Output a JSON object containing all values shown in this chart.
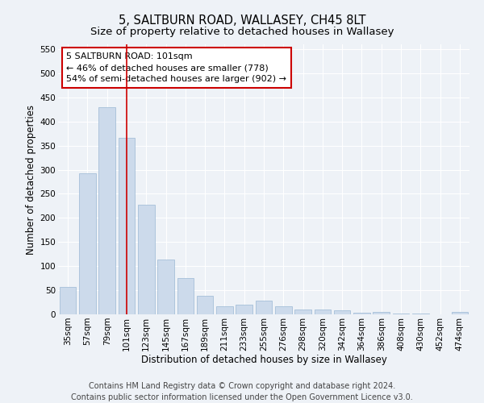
{
  "title": "5, SALTBURN ROAD, WALLASEY, CH45 8LT",
  "subtitle": "Size of property relative to detached houses in Wallasey",
  "xlabel": "Distribution of detached houses by size in Wallasey",
  "ylabel": "Number of detached properties",
  "footer_line1": "Contains HM Land Registry data © Crown copyright and database right 2024.",
  "footer_line2": "Contains public sector information licensed under the Open Government Licence v3.0.",
  "categories": [
    "35sqm",
    "57sqm",
    "79sqm",
    "101sqm",
    "123sqm",
    "145sqm",
    "167sqm",
    "189sqm",
    "211sqm",
    "233sqm",
    "255sqm",
    "276sqm",
    "298sqm",
    "320sqm",
    "342sqm",
    "364sqm",
    "386sqm",
    "408sqm",
    "430sqm",
    "452sqm",
    "474sqm"
  ],
  "values": [
    57,
    293,
    430,
    366,
    228,
    113,
    76,
    38,
    17,
    20,
    29,
    17,
    10,
    10,
    8,
    3,
    5,
    2,
    1,
    0,
    5
  ],
  "bar_color": "#ccdaeb",
  "bar_edge_color": "#9ab8d4",
  "highlight_index": 3,
  "highlight_line_color": "#cc0000",
  "annotation_line1": "5 SALTBURN ROAD: 101sqm",
  "annotation_line2": "← 46% of detached houses are smaller (778)",
  "annotation_line3": "54% of semi-detached houses are larger (902) →",
  "annotation_box_color": "#ffffff",
  "annotation_box_edge_color": "#cc0000",
  "ylim": [
    0,
    560
  ],
  "yticks": [
    0,
    50,
    100,
    150,
    200,
    250,
    300,
    350,
    400,
    450,
    500,
    550
  ],
  "background_color": "#eef2f7",
  "grid_color": "#ffffff",
  "title_fontsize": 10.5,
  "subtitle_fontsize": 9.5,
  "axis_label_fontsize": 8.5,
  "tick_fontsize": 7.5,
  "annotation_fontsize": 8,
  "footer_fontsize": 7
}
